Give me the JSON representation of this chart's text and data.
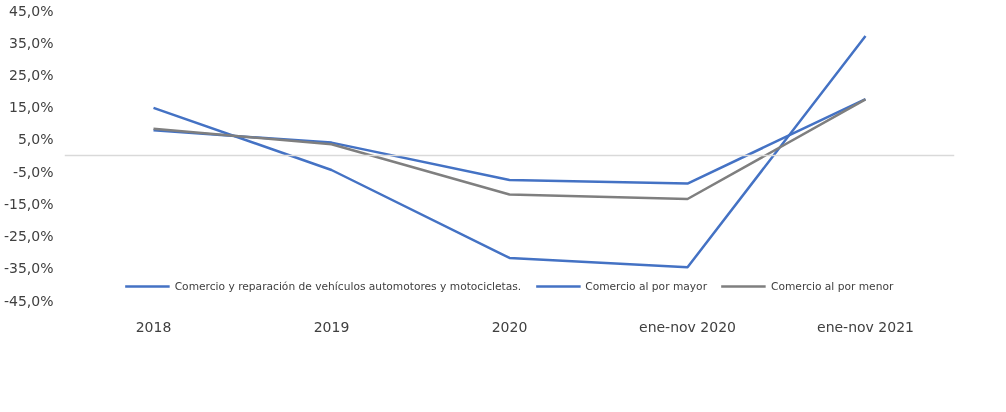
{
  "chart_data": {
    "type": "line",
    "categories": [
      "2018",
      "2019",
      "2020",
      "ene-nov 2020",
      "ene-nov 2021"
    ],
    "series": [
      {
        "name": "Comercio y reparación de vehículos automotores y motocicletas.",
        "color": "#4472c4",
        "values": [
          14.8,
          -4.5,
          -31.8,
          -34.7,
          37.1
        ]
      },
      {
        "name": "Comercio al por mayor",
        "color": "#4472c4",
        "values": [
          7.8,
          4.0,
          -7.6,
          -8.7,
          17.5
        ]
      },
      {
        "name": "Comercio al por menor",
        "color": "#7f7f7f",
        "values": [
          8.3,
          3.5,
          -12.1,
          -13.5,
          17.4
        ]
      }
    ],
    "ylim": [
      -45,
      45
    ],
    "yticks": [
      {
        "value": 45,
        "label": "45,0%"
      },
      {
        "value": 35,
        "label": "35,0%"
      },
      {
        "value": 25,
        "label": "25,0%"
      },
      {
        "value": 15,
        "label": "15,0%"
      },
      {
        "value": 5,
        "label": "5,0%"
      },
      {
        "value": -5,
        "label": "-5,0%"
      },
      {
        "value": -15,
        "label": "-15,0%"
      },
      {
        "value": -25,
        "label": "-25,0%"
      },
      {
        "value": -35,
        "label": "-35,0%"
      },
      {
        "value": -45,
        "label": "-45,0%"
      }
    ],
    "grid": false,
    "legend": "bottom",
    "marker": "none",
    "line_style": "solid"
  }
}
